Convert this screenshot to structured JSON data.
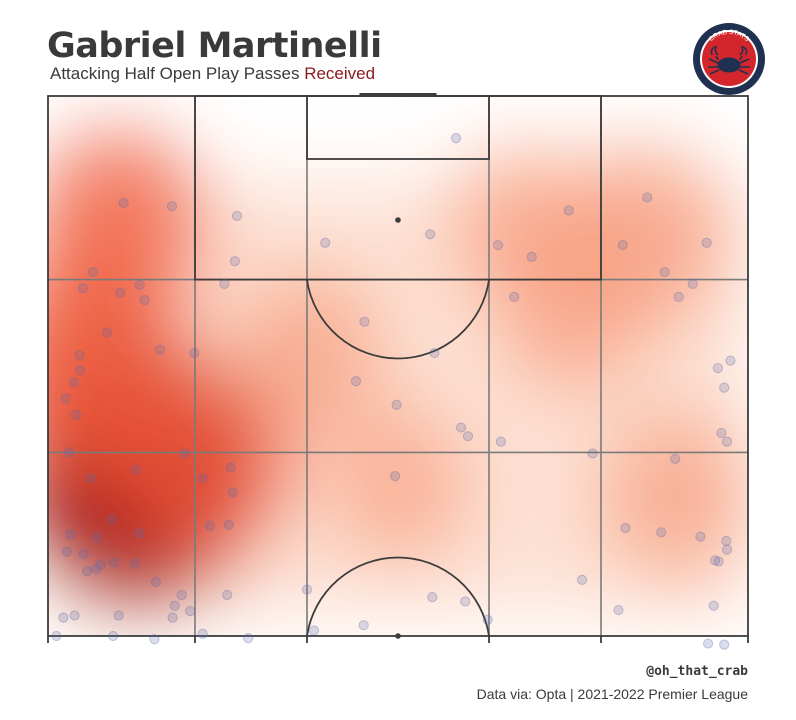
{
  "header": {
    "title": "Gabriel Martinelli",
    "subtitle_main": "Attacking Half Open Play Passes",
    "subtitle_highlight": "Received"
  },
  "logo": {
    "text": "CRAB STATS",
    "ring_color": "#1f3050",
    "inner_color": "#d3262c"
  },
  "footer": {
    "handle": "@oh_that_crab",
    "source": "Data via: Opta | 2021-2022 Premier League"
  },
  "colors": {
    "heat_max": "#a50f15",
    "heat_mid": "#ef5a3c",
    "heat_low": "#fcc8b0",
    "point": "#5b6aa8",
    "lines": "#3c3c3c"
  },
  "chart_data": {
    "type": "scatter",
    "description_units": "pitch coordinates, attacking half: x = 0 (left touchline) to 100 (right touchline), y = 50 (halfway line) to 100 (goal line)",
    "xlim": [
      0,
      100
    ],
    "ylim": [
      50,
      100
    ],
    "grid_zones": {
      "x_bounds": [
        0,
        21,
        37,
        63,
        79,
        100
      ],
      "y_bounds": [
        50,
        67,
        83,
        100
      ]
    },
    "heatmap_hotspots": [
      {
        "x": 13,
        "y": 65,
        "intensity": 1.0
      },
      {
        "x": 6,
        "y": 75,
        "intensity": 0.7
      },
      {
        "x": 22,
        "y": 66,
        "intensity": 0.55
      },
      {
        "x": 10,
        "y": 88,
        "intensity": 0.5
      },
      {
        "x": 37,
        "y": 76,
        "intensity": 0.35
      },
      {
        "x": 85,
        "y": 87,
        "intensity": 0.45
      },
      {
        "x": 90,
        "y": 63,
        "intensity": 0.35
      },
      {
        "x": 75,
        "y": 80,
        "intensity": 0.3
      },
      {
        "x": 68,
        "y": 88,
        "intensity": 0.3
      },
      {
        "x": 50,
        "y": 64,
        "intensity": 0.25
      }
    ],
    "points": [
      [
        58.3,
        96.1
      ],
      [
        10.8,
        90.1
      ],
      [
        17.7,
        89.8
      ],
      [
        27.0,
        88.9
      ],
      [
        39.6,
        86.4
      ],
      [
        54.6,
        87.2
      ],
      [
        64.3,
        86.2
      ],
      [
        69.1,
        85.1
      ],
      [
        74.4,
        89.4
      ],
      [
        82.1,
        86.2
      ],
      [
        85.6,
        90.6
      ],
      [
        94.1,
        86.4
      ],
      [
        26.7,
        84.7
      ],
      [
        25.2,
        82.6
      ],
      [
        6.4,
        83.7
      ],
      [
        5.0,
        82.2
      ],
      [
        10.3,
        81.8
      ],
      [
        13.1,
        82.5
      ],
      [
        13.8,
        81.1
      ],
      [
        66.6,
        81.4
      ],
      [
        90.1,
        81.4
      ],
      [
        92.1,
        82.6
      ],
      [
        88.1,
        83.7
      ],
      [
        8.4,
        78.1
      ],
      [
        16.0,
        76.5
      ],
      [
        20.9,
        76.2
      ],
      [
        4.6,
        74.6
      ],
      [
        3.7,
        73.5
      ],
      [
        4.5,
        76.0
      ],
      [
        2.5,
        72.0
      ],
      [
        4.0,
        70.5
      ],
      [
        45.2,
        79.1
      ],
      [
        55.2,
        76.2
      ],
      [
        44.0,
        73.6
      ],
      [
        49.8,
        71.4
      ],
      [
        59.0,
        69.3
      ],
      [
        60.0,
        68.5
      ],
      [
        64.7,
        68.0
      ],
      [
        77.8,
        66.9
      ],
      [
        89.6,
        66.4
      ],
      [
        95.7,
        74.8
      ],
      [
        97.5,
        75.5
      ],
      [
        96.6,
        73.0
      ],
      [
        97.0,
        68.0
      ],
      [
        96.2,
        68.8
      ],
      [
        3.0,
        67.0
      ],
      [
        6.1,
        64.6
      ],
      [
        12.6,
        65.4
      ],
      [
        9.1,
        60.8
      ],
      [
        19.5,
        66.9
      ],
      [
        22.1,
        64.6
      ],
      [
        26.1,
        65.6
      ],
      [
        26.4,
        63.3
      ],
      [
        23.1,
        60.2
      ],
      [
        49.6,
        64.8
      ],
      [
        3.2,
        59.4
      ],
      [
        7.0,
        59.1
      ],
      [
        2.7,
        57.8
      ],
      [
        5.1,
        57.6
      ],
      [
        6.9,
        56.2
      ],
      [
        13.0,
        59.5
      ],
      [
        25.6,
        53.8
      ],
      [
        37.0,
        54.3
      ],
      [
        54.9,
        53.6
      ],
      [
        59.6,
        53.2
      ],
      [
        7.5,
        56.6
      ],
      [
        9.4,
        56.8
      ],
      [
        12.4,
        56.7
      ],
      [
        15.4,
        55.0
      ],
      [
        19.1,
        53.8
      ],
      [
        20.3,
        52.3
      ],
      [
        18.1,
        52.8
      ],
      [
        25.8,
        60.3
      ],
      [
        82.5,
        60.0
      ],
      [
        87.6,
        59.6
      ],
      [
        93.2,
        59.2
      ],
      [
        96.9,
        58.8
      ],
      [
        95.3,
        57.0
      ],
      [
        76.3,
        55.2
      ],
      [
        95.8,
        56.9
      ],
      [
        97.0,
        58.0
      ],
      [
        5.6,
        56.0
      ],
      [
        2.2,
        51.7
      ],
      [
        3.8,
        51.9
      ],
      [
        10.1,
        51.9
      ],
      [
        17.8,
        51.7
      ],
      [
        38.0,
        50.5
      ],
      [
        45.1,
        51.0
      ],
      [
        62.8,
        51.5
      ],
      [
        1.2,
        50.0
      ],
      [
        9.3,
        50.0
      ],
      [
        15.2,
        49.7
      ],
      [
        22.1,
        50.2
      ],
      [
        28.6,
        49.8
      ],
      [
        96.6,
        49.2
      ],
      [
        95.1,
        52.8
      ],
      [
        94.3,
        49.3
      ],
      [
        81.5,
        52.4
      ]
    ]
  }
}
